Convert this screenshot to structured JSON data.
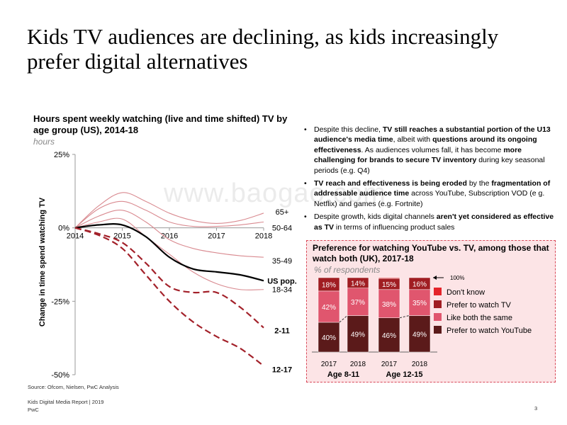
{
  "page_title": "Kids TV audiences are declining, as kids increasingly prefer digital alternatives",
  "watermark": "www.baogao.com",
  "main_chart": {
    "title": "Hours spent weekly watching (live and time shifted) TV by age group (US), 2014-18",
    "subtitle": "hours",
    "y_axis_label": "Change in time spend watching TV"
  },
  "chart_data": [
    {
      "type": "line",
      "title": "Hours spent weekly watching (live and time shifted) TV by age group (US), 2014-18",
      "subtitle": "hours",
      "xlabel": "",
      "ylabel": "Change in time spend watching TV",
      "x": [
        2014,
        2014.5,
        2015,
        2015.5,
        2016,
        2016.5,
        2017,
        2017.5,
        2018
      ],
      "ylim": [
        -50,
        25
      ],
      "y_ticks": [
        25,
        0,
        -25,
        -50
      ],
      "y_tick_labels": [
        "25%",
        "0%",
        "-25%",
        "-50%"
      ],
      "x_ticks": [
        2014,
        2015,
        2016,
        2017,
        2018
      ],
      "x_tick_labels": [
        "2014",
        "2015",
        "2016",
        "2017",
        "2018"
      ],
      "series": [
        {
          "name": "65+",
          "label": "65+",
          "style": "thin",
          "values": [
            0,
            7.5,
            12,
            9,
            5,
            2.5,
            1.5,
            2.5,
            5
          ]
        },
        {
          "name": "50-64",
          "label": "50-64",
          "style": "thin",
          "values": [
            0,
            6.5,
            9,
            6,
            2,
            0.5,
            0.5,
            1,
            2
          ]
        },
        {
          "name": "35-49",
          "label": "35-49",
          "style": "thin",
          "values": [
            0,
            4,
            6,
            2,
            -4,
            -7,
            -8.5,
            -9.5,
            -10
          ]
        },
        {
          "name": "18-34",
          "label": "18-34",
          "style": "thin",
          "values": [
            0,
            2,
            3,
            -3,
            -9,
            -15,
            -19,
            -21,
            -21
          ]
        },
        {
          "name": "US pop.",
          "label": "US pop.",
          "style": "thick",
          "values": [
            0,
            1,
            1,
            -3,
            -10,
            -14,
            -15,
            -16,
            -18
          ]
        },
        {
          "name": "2-11",
          "label": "2-11",
          "style": "dashed",
          "values": [
            0,
            -2,
            -5,
            -12,
            -20,
            -22,
            -22,
            -27,
            -34
          ]
        },
        {
          "name": "12-17",
          "label": "12-17",
          "style": "dashed",
          "values": [
            0,
            -2.5,
            -7,
            -16,
            -25,
            -32,
            -37,
            -41,
            -47
          ]
        }
      ]
    },
    {
      "type": "bar",
      "stacked": true,
      "title": "Preference for watching YouTube vs. TV, among those that watch both (UK), 2017-18",
      "subtitle": "% of respondents",
      "ylim": [
        0,
        100
      ],
      "top_marker": "100%",
      "categories": [
        "2017",
        "2018",
        "2017",
        "2018"
      ],
      "groups": [
        {
          "label": "Age 8-11",
          "categories": [
            "2017",
            "2018"
          ]
        },
        {
          "label": "Age 12-15",
          "categories": [
            "2017",
            "2018"
          ]
        }
      ],
      "series": [
        {
          "name": "Prefer to watch YouTube",
          "color": "#5b1a1a",
          "values": [
            40,
            49,
            46,
            49
          ],
          "labels": [
            "40%",
            "49%",
            "46%",
            "49%"
          ]
        },
        {
          "name": "Like both the same",
          "color": "#e0566e",
          "values": [
            42,
            37,
            38,
            35
          ],
          "labels": [
            "42%",
            "37%",
            "38%",
            "35%"
          ]
        },
        {
          "name": "Prefer to watch TV",
          "color": "#a01d22",
          "values": [
            18,
            14,
            15,
            16
          ],
          "labels": [
            "18%",
            "14%",
            "15%",
            "16%"
          ]
        },
        {
          "name": "Don't know",
          "color": "#e4242a",
          "values": [
            0,
            0,
            1,
            0
          ],
          "labels": [
            "",
            "",
            "",
            ""
          ]
        }
      ],
      "legend": [
        "Don't know",
        "Prefer to watch TV",
        "Like both the same",
        "Prefer to watch YouTube"
      ],
      "legend_colors": [
        "#e4242a",
        "#a01d22",
        "#e0566e",
        "#5b1a1a"
      ]
    }
  ],
  "bullets": [
    [
      {
        "t": "Despite this decline, ",
        "b": false
      },
      {
        "t": "TV still reaches a substantial portion of the U13 audience's media time",
        "b": true
      },
      {
        "t": ", albeit with ",
        "b": false
      },
      {
        "t": "questions around its ongoing effectiveness",
        "b": true
      },
      {
        "t": ". As audiences volumes fall, it has become ",
        "b": false
      },
      {
        "t": "more challenging for brands to secure TV inventory",
        "b": true
      },
      {
        "t": " during key seasonal periods (e.g. Q4)",
        "b": false
      }
    ],
    [
      {
        "t": "TV reach and effectiveness is being eroded",
        "b": true
      },
      {
        "t": " by the ",
        "b": false
      },
      {
        "t": "fragmentation of addressable audience time",
        "b": true
      },
      {
        "t": " across YouTube, Subscription VOD (e g. Netflix) and games (e.g. Fortnite)",
        "b": false
      }
    ],
    [
      {
        "t": "Despite growth, kids digital channels ",
        "b": false
      },
      {
        "t": "aren't yet considered as effective as TV",
        "b": true
      },
      {
        "t": " in terms of influencing product sales",
        "b": false
      }
    ]
  ],
  "source": "Source: Ofcom, Nielsen, PwC Analysis",
  "footer": {
    "report": "Kids Digital Media Report | 2019",
    "company": "PwC",
    "page": "3"
  },
  "colors": {
    "line_thin": "#d98a90",
    "line_dashed": "#a3212a",
    "line_thick": "#000000",
    "inset_bg": "#fce4e6",
    "inset_border": "#d94a5a",
    "accent": "#a01d22"
  }
}
